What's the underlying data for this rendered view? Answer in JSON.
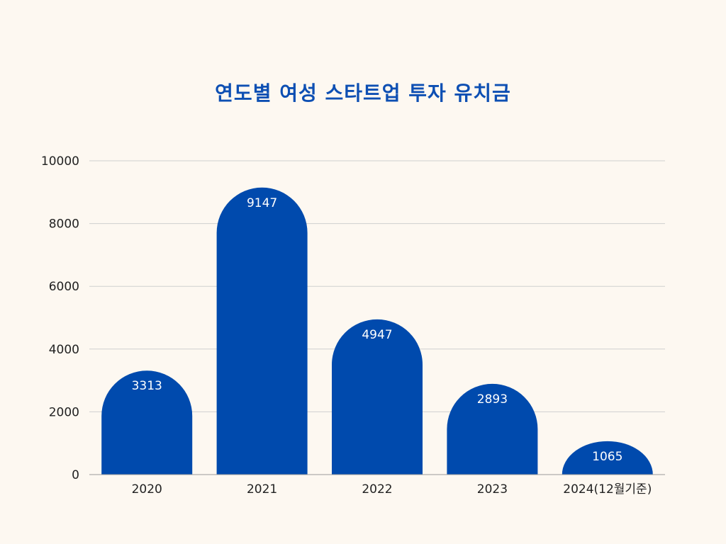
{
  "chart_data": {
    "type": "bar",
    "title": "연도별 여성 스타트업 투자 유치금",
    "categories": [
      "2020",
      "2021",
      "2022",
      "2023",
      "2024(12월기준)"
    ],
    "values": [
      3313,
      9147,
      4947,
      2893,
      1065
    ],
    "ylim": [
      0,
      10000
    ],
    "yticks": [
      0,
      2000,
      4000,
      6000,
      8000,
      10000
    ],
    "xlabel": "",
    "ylabel": "",
    "grid": true,
    "legend": "none",
    "data_labels": true,
    "bar_shape": "rounded-top",
    "colors": {
      "bar": "#004aad",
      "title": "#0d4fb3",
      "grid": "#cfcfcf",
      "value_label": "#ffffff",
      "tick_label": "#222222",
      "background": "#fdf8f1"
    }
  }
}
